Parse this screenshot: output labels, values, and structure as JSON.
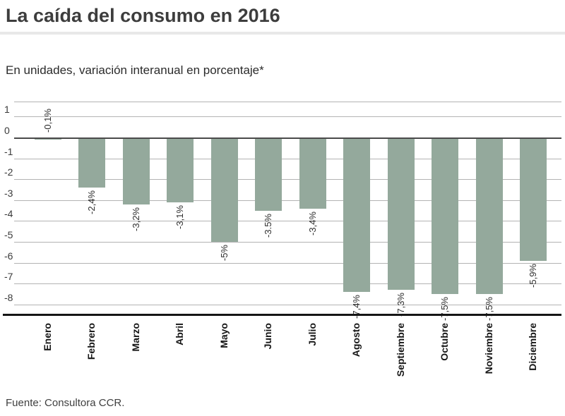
{
  "title": "La caída del consumo en 2016",
  "subtitle": "En unidades, variación interanual en porcentaje*",
  "source": "Fuente: Consultora CCR.",
  "colors": {
    "bar": "#94a99c",
    "zero_line": "#4a4a4a",
    "gridline": "#b3b3b3",
    "axis": "#151515",
    "title_text": "#3d3d3d",
    "divider": "#e8e8e8"
  },
  "chart_data": {
    "type": "bar",
    "title": "La caída del consumo en 2016",
    "subtitle": "En unidades, variación interanual en porcentaje*",
    "source": "Fuente: Consultora CCR.",
    "categories": [
      "Enero",
      "Febrero",
      "Marzo",
      "Abril",
      "Mayo",
      "Junio",
      "Julio",
      "Agosto",
      "Septiembre",
      "Octubre",
      "Noviembre",
      "Diciembre"
    ],
    "values": [
      -0.1,
      -2.4,
      -3.2,
      -3.1,
      -5,
      -3.5,
      -3.4,
      -7.4,
      -7.3,
      -7.5,
      -7.5,
      -5.9
    ],
    "value_labels": [
      "-0,1%",
      "-2,4%",
      "-3,2%",
      "-3,1%",
      "-5%",
      "-3.5%",
      "-3,4%",
      "-7,4%",
      "-7,3%",
      "-7,5%",
      "-7,5%",
      "-5,9%"
    ],
    "y_ticks": [
      1,
      0,
      -1,
      -2,
      -3,
      -4,
      -5,
      -6,
      -7,
      -8
    ],
    "ylim": [
      1.7,
      -8.5
    ],
    "xlabel": "",
    "ylabel": "",
    "grid": true,
    "legend": false,
    "bar_color": "#94a99c"
  }
}
